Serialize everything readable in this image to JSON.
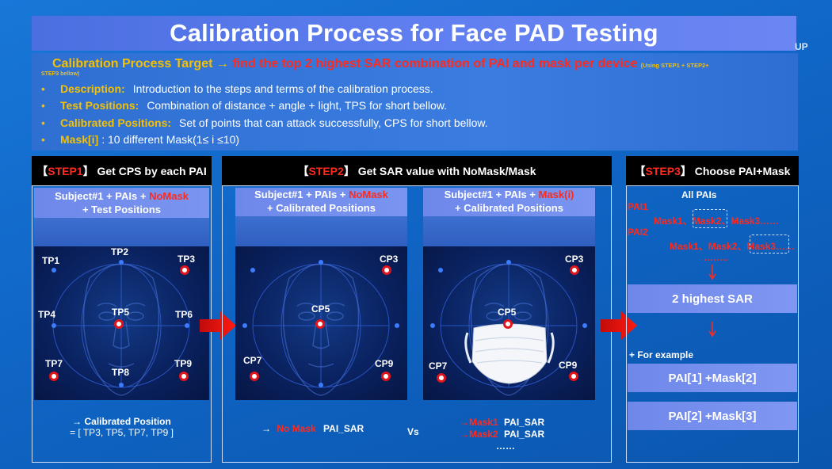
{
  "title": "Calibration Process for Face PAD Testing",
  "side_label": "UP",
  "intro": {
    "target_prefix": "Calibration Process Target →",
    "target_red": "find the top 2 highest SAR combination of PAI and mask per device",
    "target_small": "(Using STEP1 + STEP2+",
    "target_small_2": "STEP3 bellow)",
    "bullets": [
      {
        "dot": "•",
        "key": "Description:",
        "val": "Introduction to the steps and terms of the  calibration process."
      },
      {
        "dot": "•",
        "key": "Test Positions:",
        "val": "Combination of distance + angle + light,  TPS for short bellow."
      },
      {
        "dot": "•",
        "key": "Calibrated Positions:",
        "val": "Set of points that can attack successfully,  CPS for short bellow."
      },
      {
        "dot": "•",
        "key": "Mask[i]",
        "val": ": 10 different Mask(1≤ i ≤10)"
      }
    ]
  },
  "step1": {
    "bracket_l": "【",
    "tag": "STEP1",
    "bracket_r": "】",
    "title": "Get CPS by each PAI",
    "sub_a": "Subject#1 + PAIs + ",
    "sub_red": "NoMask",
    "sub_b": "+ Test Positions",
    "labels": {
      "tp1": "TP1",
      "tp2": "TP2",
      "tp3": "TP3",
      "tp4": "TP4",
      "tp5": "TP5",
      "tp6": "TP6",
      "tp7": "TP7",
      "tp8": "TP8",
      "tp9": "TP9"
    },
    "result_1": "→ Calibrated Position",
    "result_2": "= [ TP3, TP5, TP7, TP9 ]"
  },
  "step2": {
    "bracket_l": "【",
    "tag": "STEP2",
    "bracket_r": "】",
    "title": "Get SAR value with NoMask/Mask",
    "left": {
      "sub_a": "Subject#1 + PAIs + ",
      "sub_red": "NoMask",
      "sub_b": "+ Calibrated Positions",
      "labels": {
        "cp3": "CP3",
        "cp5": "CP5",
        "cp7": "CP7",
        "cp9": "CP9"
      },
      "result_arrow": "→",
      "result_red": "No Mask",
      "result_val": "PAI_SAR"
    },
    "vs": "Vs",
    "right": {
      "sub_a": "Subject#1 + PAIs + ",
      "sub_red": "Mask(i)",
      "sub_b": "+ Calibrated Positions",
      "labels": {
        "cp3": "CP3",
        "cp5": "CP5",
        "cp7": "CP7",
        "cp9": "CP9"
      },
      "row1_red": "→Mask1",
      "row1_val": "PAI_SAR",
      "row2_red": "→Mask2",
      "row2_val": "PAI_SAR",
      "row3": "……"
    }
  },
  "step3": {
    "bracket_l": "【",
    "tag": "STEP3",
    "bracket_r": "】",
    "title": "Choose PAI+Mask",
    "all_pais": "All PAIs",
    "pai1": "PAI1",
    "pai1_masks": [
      "Mask1、",
      "Mask2",
      "、Mask3……"
    ],
    "pai2": "PAI2",
    "pai2_masks": [
      "Mask1、Mask2、",
      "Mask3",
      "……"
    ],
    "dots": "……..",
    "highest": "2 highest SAR",
    "example": "+ For example",
    "ex1": "PAI[1] +Mask[2]",
    "ex2": "PAI[2] +Mask[3]"
  },
  "colors": {
    "accent_gold": "#f5c000",
    "accent_red": "#ff2a1e",
    "background": "#1266c8"
  }
}
